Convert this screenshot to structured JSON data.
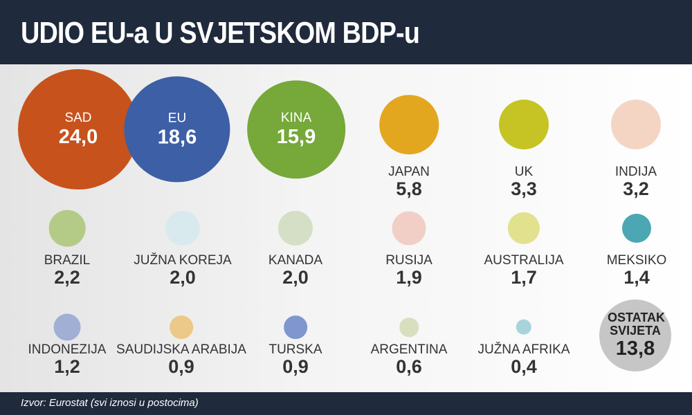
{
  "header": {
    "title": "UDIO EU-a U SVJETSKOM BDP-u"
  },
  "footer": {
    "source": "Izvor: Eurostat (svi iznosi u postocima)"
  },
  "chart_data": {
    "type": "bubble",
    "title": "UDIO EU-a U SVJETSKOM BDP-u",
    "unit": "postoci",
    "labels": [
      "SAD",
      "EU",
      "KINA",
      "JAPAN",
      "UK",
      "INDIJA",
      "BRAZIL",
      "JUŽNA KOREJA",
      "KANADA",
      "RUSIJA",
      "AUSTRALIJA",
      "MEKSIKO",
      "INDONEZIJA",
      "SAUDIJSKA ARABIJA",
      "TURSKA",
      "ARGENTINA",
      "JUŽNA AFRIKA",
      "OSTATAK SVIJETA"
    ],
    "display_values": [
      "24,0",
      "18,6",
      "15,9",
      "5,8",
      "3,3",
      "3,2",
      "2,2",
      "2,0",
      "2,0",
      "1,9",
      "1,7",
      "1,4",
      "1,2",
      "0,9",
      "0,9",
      "0,6",
      "0,4",
      "13,8"
    ],
    "values": [
      24.0,
      18.6,
      15.9,
      5.8,
      3.3,
      3.2,
      2.2,
      2.0,
      2.0,
      1.9,
      1.7,
      1.4,
      1.2,
      0.9,
      0.9,
      0.6,
      0.4,
      13.8
    ],
    "colors": [
      "#c7521c",
      "#3d5fa6",
      "#76a83a",
      "#e3a71f",
      "#c5c424",
      "#f4d5c4",
      "#b3cb87",
      "#d8eaee",
      "#d4dfc5",
      "#f1cfc6",
      "#e1e18e",
      "#4ba7b3",
      "#a1afd5",
      "#ecc889",
      "#7f96cf",
      "#d8dfbf",
      "#a9d3da",
      "#c6c6c6"
    ]
  }
}
